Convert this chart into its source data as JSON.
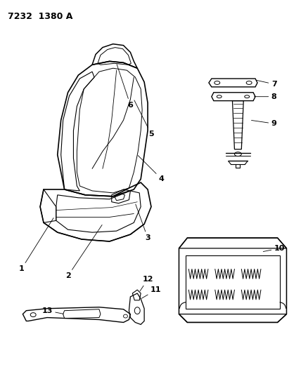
{
  "title": "7232  1380 A",
  "bg_color": "#ffffff",
  "line_color": "#000000",
  "title_fontsize": 9,
  "label_fontsize": 8,
  "fig_width": 4.28,
  "fig_height": 5.33,
  "dpi": 100
}
